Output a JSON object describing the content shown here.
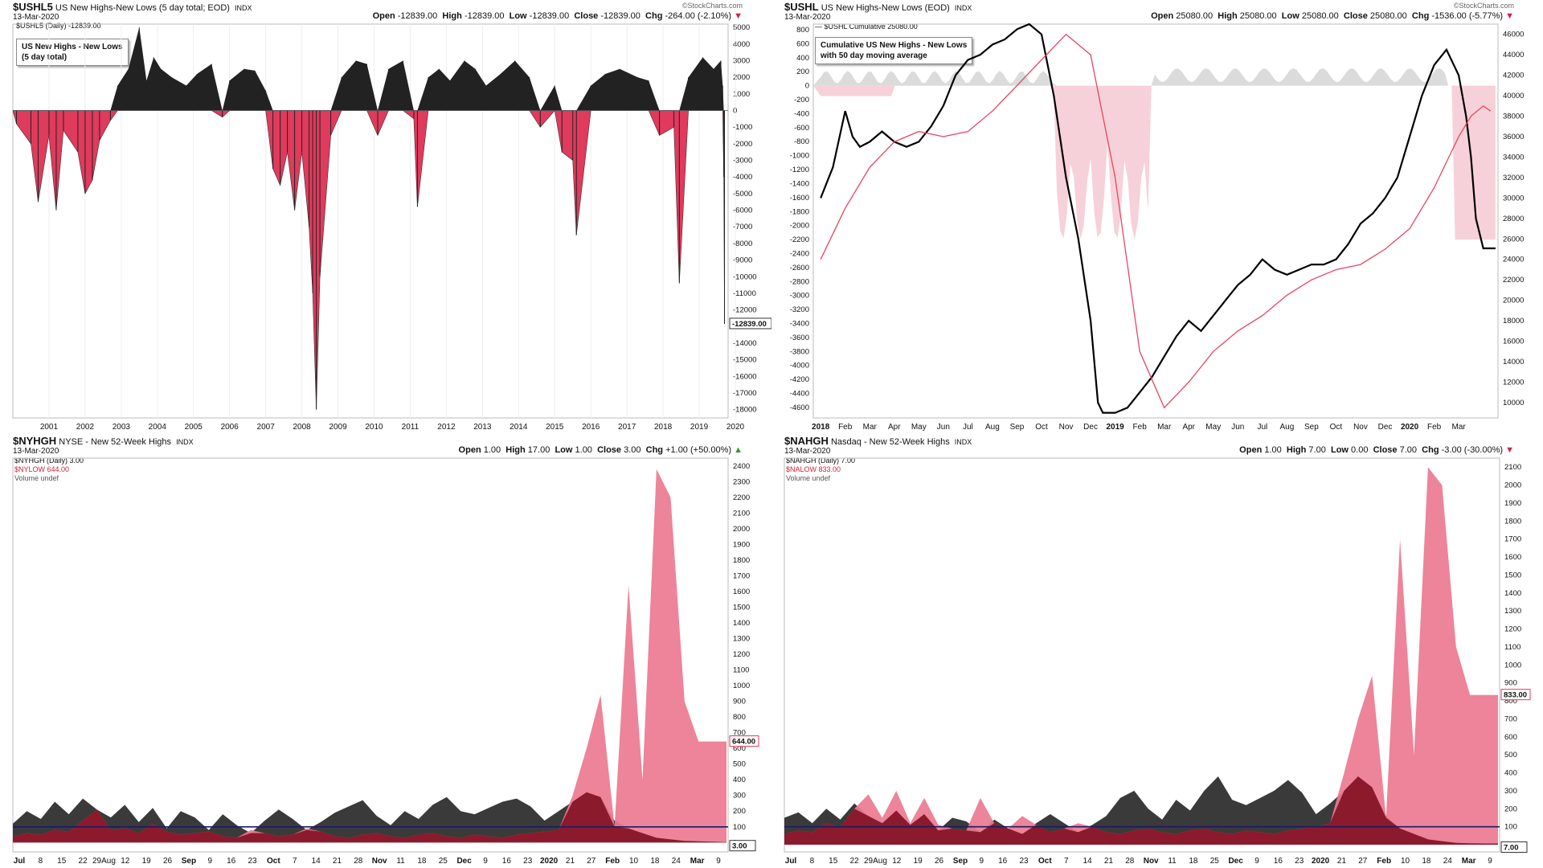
{
  "brand": "StockCharts.com",
  "brand_icon": "copyright-icon",
  "panels": [
    {
      "symbol": "$USHL5",
      "description": "US New Highs-New Lows (5 day total; EOD)",
      "exchange": "INDX",
      "date": "13-Mar-2020",
      "legend_line": "$USHL5 (Daily) -12839.00",
      "open": "-12839.00",
      "high": "-12839.00",
      "low": "-12839.00",
      "close": "-12839.00",
      "chg": "-264.00 (-2.10%)",
      "note_lines": [
        "US New Highs - New Lows",
        "(5 day total)"
      ],
      "last_value": "-12839.00"
    },
    {
      "symbol": "$USHL",
      "description": "US New Highs-New Lows (EOD)",
      "exchange": "INDX",
      "date": "13-Mar-2020",
      "legend_line": "— $USHL Cumulative 25080.00",
      "open": "25080.00",
      "high": "25080.00",
      "low": "25080.00",
      "close": "25080.00",
      "chg": "-1536.00 (-5.77%)",
      "note_lines": [
        "Cumulative US New Highs - New Lows",
        "with 50 day moving average"
      ]
    },
    {
      "symbol": "$NYHGH",
      "description": "NYSE - New 52-Week Highs",
      "exchange": "INDX",
      "date": "13-Mar-2020",
      "legend_lines": [
        "$NYHGH (Daily) 3.00",
        "$NYLOW 644.00",
        "Volume undef"
      ],
      "open": "1.00",
      "high": "17.00",
      "low": "1.00",
      "close": "3.00",
      "chg": "+1.00 (+50.00%)",
      "last_values": [
        "644.00",
        "3.00"
      ]
    },
    {
      "symbol": "$NAHGH",
      "description": "Nasdaq - New 52-Week Highs",
      "exchange": "INDX",
      "date": "13-Mar-2020",
      "legend_lines": [
        "$NAHGH (Daily) 7.00",
        "$NALOW 833.00",
        "Volume undef"
      ],
      "open": "1.00",
      "high": "7.00",
      "low": "0.00",
      "close": "7.00",
      "chg": "-3.00 (-30.00%)",
      "last_values": [
        "833.00",
        "7.00"
      ]
    }
  ],
  "ohlc_labels": {
    "open": "Open",
    "high": "High",
    "low": "Low",
    "close": "Close",
    "chg": "Chg"
  },
  "colors": {
    "positive": "#222222",
    "negative": "#e03a5c",
    "ma": "#e8455f",
    "area_pink": "#ec7a90",
    "dark_red": "#8b1a2c",
    "ref_line": "#1a1a66",
    "gray_fill": "#cccccc"
  },
  "chart_data": [
    {
      "type": "bar",
      "title": "US New Highs - New Lows (5 day total)",
      "x_tick_labels": [
        "2001",
        "2002",
        "2003",
        "2004",
        "2005",
        "2006",
        "2007",
        "2008",
        "2009",
        "2010",
        "2011",
        "2012",
        "2013",
        "2014",
        "2015",
        "2016",
        "2017",
        "2018",
        "2019",
        "2020"
      ],
      "y_ticks": [
        5000,
        4000,
        3000,
        2000,
        1000,
        0,
        -1000,
        -2000,
        -3000,
        -4000,
        -5000,
        -6000,
        -7000,
        -8000,
        -9000,
        -10000,
        -11000,
        -12000,
        -13000,
        -14000,
        -15000,
        -16000,
        -17000,
        -18000
      ],
      "ylim": [
        -18500,
        5200
      ],
      "series": [
        {
          "name": "$USHL5",
          "x": [
            2000.6,
            2001.0,
            2001.2,
            2001.5,
            2001.7,
            2001.9,
            2002.3,
            2002.5,
            2002.7,
            2002.9,
            2003.2,
            2003.4,
            2003.7,
            2004.0,
            2004.2,
            2004.4,
            2004.6,
            2004.9,
            2005.3,
            2005.6,
            2006.0,
            2006.3,
            2006.5,
            2006.9,
            2007.2,
            2007.5,
            2007.7,
            2007.9,
            2008.1,
            2008.3,
            2008.5,
            2008.7,
            2008.8,
            2008.9,
            2009.0,
            2009.3,
            2009.6,
            2010.0,
            2010.3,
            2010.6,
            2010.9,
            2011.3,
            2011.6,
            2011.7,
            2012.0,
            2012.3,
            2012.6,
            2013.0,
            2013.3,
            2013.6,
            2014.0,
            2014.4,
            2014.8,
            2015.1,
            2015.5,
            2015.7,
            2016.0,
            2016.1,
            2016.5,
            2016.9,
            2017.3,
            2017.8,
            2018.1,
            2018.4,
            2018.8,
            2018.95,
            2019.2,
            2019.6,
            2019.9,
            2020.1,
            2020.15,
            2020.18,
            2020.2
          ],
          "values": [
            -800,
            -2000,
            -5500,
            -1500,
            -6000,
            -1200,
            -2500,
            -5000,
            -4200,
            -1800,
            -600,
            1500,
            2500,
            5000,
            1800,
            3200,
            2500,
            2000,
            1500,
            2200,
            2800,
            -400,
            1800,
            2500,
            2400,
            1200,
            -3500,
            -4500,
            -2500,
            -6000,
            -2500,
            -7000,
            -11000,
            -18000,
            -10000,
            -1500,
            2000,
            3000,
            2800,
            -1500,
            2500,
            3000,
            -500,
            -5800,
            2000,
            2500,
            1800,
            3000,
            2500,
            1500,
            2200,
            3000,
            2000,
            -1000,
            1500,
            -2500,
            -3000,
            -7500,
            1500,
            2200,
            2500,
            2000,
            1800,
            -1500,
            -1000,
            -10400,
            2000,
            3200,
            2500,
            3000,
            1500,
            -4000,
            -12839
          ]
        }
      ]
    },
    {
      "type": "line",
      "title": "Cumulative US New Highs - New Lows with 50 day moving average",
      "x_tick_labels": [
        "2018",
        "Feb",
        "Mar",
        "Apr",
        "May",
        "Jun",
        "Jul",
        "Aug",
        "Sep",
        "Oct",
        "Nov",
        "Dec",
        "2019",
        "Feb",
        "Mar",
        "Apr",
        "May",
        "Jun",
        "Jul",
        "Aug",
        "Sep",
        "Oct",
        "Nov",
        "Dec",
        "2020",
        "Feb",
        "Mar"
      ],
      "y_left_ticks": [
        800,
        600,
        400,
        200,
        0,
        -200,
        -400,
        -600,
        -800,
        -1000,
        -1200,
        -1400,
        -1600,
        -1800,
        -2000,
        -2200,
        -2400,
        -2600,
        -2800,
        -3000,
        -3200,
        -3400,
        -3600,
        -3800,
        -4000,
        -4200,
        -4400,
        -4600
      ],
      "y_right_ticks": [
        46000,
        44000,
        42000,
        40000,
        38000,
        36000,
        34000,
        32000,
        30000,
        28000,
        26000,
        24000,
        22000,
        20000,
        18000,
        16000,
        14000,
        12000,
        10000
      ],
      "y_left_range": [
        -4750,
        880
      ],
      "y_right_range": [
        8500,
        47000
      ],
      "series": [
        {
          "name": "$USHL Cumulative",
          "axis": "right",
          "x": [
            0,
            0.5,
            1.0,
            1.3,
            1.6,
            2.0,
            2.5,
            3.0,
            3.5,
            4.0,
            4.5,
            5.0,
            5.5,
            6.0,
            6.5,
            7.0,
            7.5,
            8.0,
            8.5,
            9.0,
            9.5,
            10.0,
            10.5,
            11.0,
            11.3,
            11.5,
            12.0,
            12.5,
            13.0,
            13.5,
            14.0,
            14.5,
            15.0,
            15.5,
            16.0,
            16.5,
            17.0,
            17.5,
            18.0,
            18.5,
            19.0,
            19.5,
            20.0,
            20.5,
            21.0,
            21.5,
            22.0,
            22.5,
            23.0,
            23.5,
            24.0,
            24.5,
            25.0,
            25.5,
            26.0,
            26.3,
            26.5,
            26.7,
            27.0,
            27.3,
            27.5
          ],
          "values": [
            30000,
            33000,
            38500,
            36000,
            35000,
            35500,
            36500,
            35500,
            35000,
            35500,
            37000,
            39000,
            42000,
            43500,
            44000,
            45000,
            45500,
            46500,
            47000,
            46000,
            40000,
            32000,
            26000,
            18000,
            10000,
            9000,
            9000,
            9500,
            11000,
            12500,
            14500,
            16500,
            18000,
            17000,
            18500,
            20000,
            21500,
            22500,
            24000,
            23000,
            22500,
            23000,
            23500,
            23500,
            24000,
            25500,
            27500,
            28500,
            30000,
            32000,
            36000,
            40000,
            43000,
            44500,
            42000,
            38000,
            34000,
            28000,
            25080,
            25080,
            25080
          ]
        },
        {
          "name": "50 day moving average",
          "axis": "right",
          "x": [
            0,
            1,
            2,
            3,
            4,
            5,
            6,
            7,
            8,
            9,
            10,
            11,
            12,
            13,
            14,
            15,
            16,
            17,
            18,
            19,
            20,
            21,
            22,
            23,
            24,
            25,
            26,
            26.5,
            27.0,
            27.3
          ],
          "values": [
            24000,
            29000,
            33000,
            35500,
            36500,
            36000,
            36500,
            38500,
            41000,
            43500,
            46000,
            44000,
            32000,
            15000,
            9500,
            12000,
            15000,
            17000,
            18500,
            20500,
            22000,
            23000,
            23500,
            25000,
            27000,
            31000,
            36000,
            38000,
            39000,
            38500
          ]
        }
      ]
    },
    {
      "type": "area",
      "title": "",
      "x_tick_labels": [
        "Jul",
        "8",
        "15",
        "22",
        "29Aug",
        "12",
        "19",
        "26",
        "Sep",
        "9",
        "16",
        "23",
        "Oct",
        "7",
        "14",
        "21",
        "28",
        "Nov",
        "11",
        "18",
        "25",
        "Dec",
        "9",
        "16",
        "23",
        "2020",
        "21",
        "27",
        "Feb",
        "10",
        "18",
        "24",
        "Mar",
        "9"
      ],
      "y_ticks": [
        2400,
        2300,
        2200,
        2100,
        2000,
        1900,
        1800,
        1700,
        1600,
        1500,
        1400,
        1300,
        1200,
        1100,
        1000,
        900,
        800,
        700,
        600,
        500,
        400,
        300,
        200,
        100,
        0
      ],
      "ylim": [
        -60,
        2450
      ],
      "reference_line": 100,
      "series": [
        {
          "name": "$NYHGH",
          "values": [
            120,
            200,
            150,
            260,
            180,
            280,
            210,
            160,
            240,
            130,
            220,
            90,
            200,
            160,
            80,
            180,
            110,
            60,
            140,
            210,
            150,
            80,
            130,
            190,
            230,
            270,
            170,
            110,
            200,
            150,
            240,
            290,
            200,
            180,
            220,
            260,
            280,
            230,
            140,
            200,
            260,
            320,
            290,
            140,
            90,
            60,
            30,
            20,
            10,
            8,
            5,
            3
          ]
        },
        {
          "name": "$NYLOW",
          "values": [
            40,
            60,
            50,
            80,
            70,
            140,
            210,
            80,
            90,
            60,
            120,
            70,
            50,
            60,
            70,
            40,
            30,
            80,
            60,
            40,
            50,
            90,
            70,
            40,
            30,
            50,
            60,
            40,
            30,
            50,
            60,
            40,
            30,
            50,
            40,
            30,
            50,
            60,
            70,
            80,
            300,
            600,
            940,
            100,
            1640,
            400,
            2380,
            2200,
            900,
            644,
            644,
            644
          ]
        }
      ]
    },
    {
      "type": "area",
      "title": "",
      "x_tick_labels": [
        "Jul",
        "8",
        "15",
        "22",
        "29Aug",
        "12",
        "19",
        "26",
        "Sep",
        "9",
        "16",
        "23",
        "Oct",
        "7",
        "14",
        "21",
        "28",
        "Nov",
        "11",
        "18",
        "25",
        "Dec",
        "9",
        "16",
        "23",
        "2020",
        "21",
        "27",
        "Feb",
        "10",
        "18",
        "24",
        "Mar",
        "9"
      ],
      "y_ticks": [
        2100,
        2000,
        1900,
        1800,
        1700,
        1600,
        1500,
        1400,
        1300,
        1200,
        1100,
        1000,
        900,
        800,
        700,
        600,
        500,
        400,
        300,
        200,
        100,
        0
      ],
      "ylim": [
        -40,
        2150
      ],
      "reference_line": 100,
      "series": [
        {
          "name": "$NAHGH",
          "values": [
            150,
            180,
            120,
            200,
            140,
            230,
            160,
            120,
            190,
            110,
            170,
            80,
            150,
            130,
            70,
            140,
            90,
            60,
            120,
            170,
            120,
            70,
            110,
            160,
            260,
            300,
            200,
            140,
            250,
            190,
            300,
            380,
            250,
            220,
            260,
            300,
            360,
            290,
            170,
            230,
            300,
            380,
            320,
            160,
            90,
            60,
            30,
            20,
            10,
            8,
            7,
            7
          ]
        },
        {
          "name": "$NALOW",
          "values": [
            60,
            80,
            70,
            120,
            100,
            200,
            280,
            150,
            300,
            120,
            260,
            110,
            90,
            80,
            260,
            120,
            90,
            160,
            110,
            70,
            90,
            120,
            100,
            70,
            60,
            80,
            90,
            70,
            60,
            80,
            90,
            70,
            60,
            80,
            70,
            60,
            80,
            90,
            100,
            120,
            400,
            700,
            940,
            150,
            1700,
            500,
            2100,
            2000,
            1100,
            833,
            833,
            833
          ]
        }
      ]
    }
  ]
}
